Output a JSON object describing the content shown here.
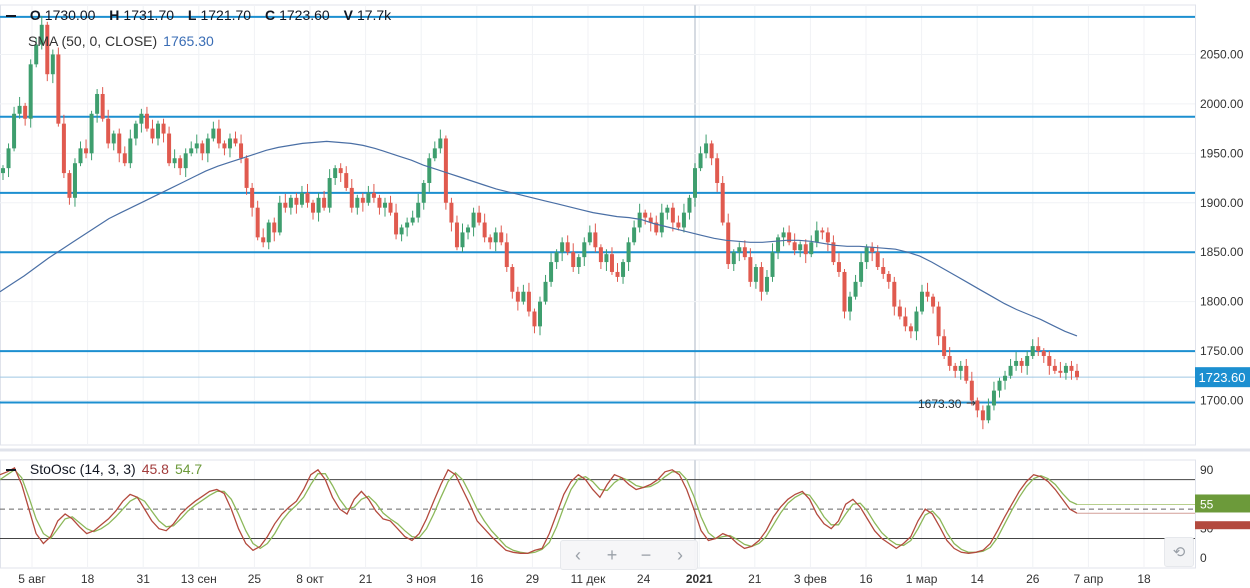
{
  "legend": {
    "o_label": "O",
    "o": "1730.00",
    "h_label": "H",
    "h": "1731.70",
    "l_label": "L",
    "l": "1721.70",
    "c_label": "C",
    "c": "1723.60",
    "v_label": "V",
    "v": "17.7k",
    "sma_label": "SMA (50, 0, CLOSE)",
    "sma_value": "1765.30"
  },
  "stoch_legend": {
    "label": "StoOsc (14, 3, 3)",
    "k": "45.8",
    "d": "54.7"
  },
  "price_tag": "1723.60",
  "stoch_tag": "55",
  "low_annotation": "1673.30",
  "nav": {
    "scroll_left": "‹",
    "zoom_in": "+",
    "zoom_out": "−",
    "scroll_right": "›",
    "reset": "⟲"
  },
  "colors": {
    "up": "#3e9e6e",
    "down": "#e05a4f",
    "sma": "#4a6fa5",
    "hline": "#1c8fd0",
    "stoch_k": "#b34a3e",
    "stoch_d": "#8cb85a",
    "tag_bg": "#1c8fd0",
    "stoch_tag_bg": "#6c9a3a"
  },
  "chart_data": [
    {
      "type": "candlestick",
      "y_ticks": [
        1700,
        1750,
        1800,
        1850,
        1900,
        1950,
        2000,
        2050
      ],
      "y_tick_labels": [
        "1700.00",
        "1750.00",
        "1800.00",
        "1850.00",
        "1900.00",
        "1950.00",
        "2000.00",
        "2050.00"
      ],
      "ylim": [
        1655,
        2100
      ],
      "x_tick_labels": [
        "5 авг",
        "18",
        "31",
        "13 сен",
        "25",
        "8 окт",
        "21",
        "3 ноя",
        "16",
        "29",
        "11 дек",
        "24",
        "2021",
        "21",
        "3 фев",
        "16",
        "1 мар",
        "14",
        "26",
        "7 апр",
        "18"
      ],
      "horizontal_levels": [
        2088,
        1987,
        1910,
        1850,
        1750,
        1698
      ],
      "last_price": 1723.6,
      "low_annotation_value": 1673.3,
      "closes": [
        1935,
        1955,
        1990,
        1998,
        1985,
        2040,
        2060,
        2080,
        2030,
        2050,
        1980,
        1930,
        1905,
        1940,
        1955,
        1950,
        1990,
        2010,
        1985,
        1960,
        1970,
        1950,
        1940,
        1965,
        1980,
        1990,
        1975,
        1965,
        1980,
        1970,
        1940,
        1945,
        1935,
        1950,
        1955,
        1960,
        1950,
        1965,
        1975,
        1960,
        1955,
        1965,
        1960,
        1945,
        1915,
        1895,
        1865,
        1860,
        1880,
        1870,
        1900,
        1895,
        1905,
        1898,
        1910,
        1900,
        1890,
        1905,
        1895,
        1925,
        1935,
        1930,
        1915,
        1895,
        1905,
        1900,
        1910,
        1905,
        1895,
        1900,
        1890,
        1868,
        1875,
        1880,
        1885,
        1900,
        1920,
        1945,
        1955,
        1965,
        1900,
        1880,
        1855,
        1870,
        1875,
        1890,
        1880,
        1865,
        1860,
        1870,
        1860,
        1835,
        1810,
        1800,
        1810,
        1790,
        1775,
        1800,
        1820,
        1840,
        1850,
        1860,
        1850,
        1835,
        1845,
        1860,
        1870,
        1855,
        1840,
        1848,
        1830,
        1825,
        1840,
        1860,
        1875,
        1890,
        1885,
        1880,
        1870,
        1890,
        1895,
        1880,
        1875,
        1890,
        1905,
        1935,
        1950,
        1960,
        1945,
        1920,
        1880,
        1838,
        1850,
        1855,
        1845,
        1820,
        1835,
        1810,
        1825,
        1850,
        1865,
        1870,
        1860,
        1852,
        1858,
        1848,
        1860,
        1872,
        1870,
        1860,
        1840,
        1830,
        1790,
        1805,
        1820,
        1840,
        1855,
        1850,
        1835,
        1828,
        1820,
        1795,
        1785,
        1775,
        1770,
        1790,
        1810,
        1805,
        1795,
        1765,
        1745,
        1735,
        1730,
        1735,
        1720,
        1700,
        1690,
        1680,
        1695,
        1710,
        1720,
        1725,
        1735,
        1740,
        1735,
        1745,
        1755,
        1750,
        1745,
        1735,
        1730,
        1728,
        1735,
        1730,
        1723.6
      ],
      "sma_50": [
        1810,
        1818,
        1826,
        1835,
        1844,
        1852,
        1860,
        1868,
        1876,
        1884,
        1890,
        1896,
        1902,
        1908,
        1914,
        1920,
        1926,
        1932,
        1937,
        1941,
        1945,
        1949,
        1953,
        1956,
        1958,
        1960,
        1961,
        1962,
        1961,
        1960,
        1958,
        1955,
        1951,
        1947,
        1943,
        1938,
        1934,
        1930,
        1926,
        1922,
        1918,
        1914,
        1911,
        1908,
        1905,
        1902,
        1899,
        1896,
        1893,
        1890,
        1888,
        1886,
        1885,
        1883,
        1879,
        1876,
        1873,
        1870,
        1867,
        1864,
        1862,
        1861,
        1860,
        1860,
        1861,
        1862,
        1862,
        1861,
        1859,
        1857,
        1856,
        1856,
        1855,
        1854,
        1853,
        1850,
        1846,
        1840,
        1833,
        1826,
        1819,
        1812,
        1805,
        1798,
        1792,
        1787,
        1782,
        1776,
        1770,
        1765.3
      ]
    },
    {
      "type": "line",
      "name": "StoOsc (14, 3, 3)",
      "y_ticks": [
        0,
        30,
        55,
        90
      ],
      "levels": [
        20,
        50,
        80
      ],
      "ylim": [
        -10,
        100
      ],
      "k_last": 45.8,
      "d_last": 54.7,
      "k": [
        85,
        88,
        92,
        75,
        50,
        25,
        15,
        22,
        38,
        45,
        40,
        32,
        25,
        28,
        34,
        40,
        48,
        58,
        65,
        62,
        50,
        38,
        30,
        28,
        35,
        45,
        52,
        58,
        63,
        68,
        70,
        66,
        50,
        30,
        15,
        8,
        12,
        22,
        35,
        45,
        52,
        58,
        70,
        85,
        90,
        80,
        62,
        50,
        45,
        60,
        68,
        60,
        48,
        40,
        38,
        30,
        22,
        18,
        25,
        40,
        58,
        75,
        90,
        85,
        70,
        55,
        38,
        30,
        22,
        15,
        8,
        6,
        5,
        5,
        8,
        10,
        25,
        45,
        65,
        78,
        85,
        80,
        70,
        62,
        75,
        85,
        82,
        75,
        70,
        72,
        75,
        80,
        88,
        90,
        85,
        70,
        50,
        28,
        18,
        20,
        25,
        22,
        15,
        10,
        12,
        18,
        28,
        42,
        52,
        60,
        65,
        68,
        60,
        45,
        35,
        30,
        38,
        55,
        60,
        52,
        40,
        28,
        20,
        15,
        10,
        15,
        22,
        38,
        50,
        45,
        32,
        18,
        10,
        6,
        5,
        6,
        8,
        15,
        28,
        42,
        55,
        68,
        78,
        85,
        83,
        78,
        70,
        60,
        50,
        45.8
      ],
      "d": [
        80,
        85,
        90,
        82,
        62,
        40,
        25,
        20,
        30,
        40,
        42,
        36,
        30,
        27,
        30,
        35,
        42,
        50,
        58,
        62,
        58,
        48,
        38,
        32,
        33,
        40,
        48,
        54,
        59,
        64,
        68,
        68,
        60,
        45,
        28,
        15,
        10,
        15,
        25,
        38,
        47,
        54,
        62,
        75,
        86,
        86,
        74,
        60,
        50,
        52,
        60,
        63,
        56,
        46,
        40,
        35,
        28,
        22,
        21,
        30,
        45,
        62,
        78,
        87,
        80,
        66,
        50,
        38,
        28,
        20,
        12,
        8,
        6,
        5,
        6,
        9,
        16,
        32,
        52,
        70,
        81,
        83,
        78,
        70,
        69,
        77,
        82,
        79,
        74,
        72,
        73,
        77,
        83,
        88,
        88,
        80,
        63,
        42,
        26,
        20,
        22,
        23,
        19,
        14,
        12,
        15,
        22,
        34,
        46,
        56,
        62,
        66,
        64,
        54,
        42,
        34,
        34,
        45,
        55,
        56,
        48,
        36,
        26,
        19,
        14,
        13,
        18,
        30,
        44,
        48,
        40,
        26,
        15,
        9,
        6,
        6,
        7,
        11,
        21,
        35,
        49,
        62,
        73,
        81,
        84,
        81,
        75,
        66,
        58,
        54.7
      ]
    }
  ]
}
